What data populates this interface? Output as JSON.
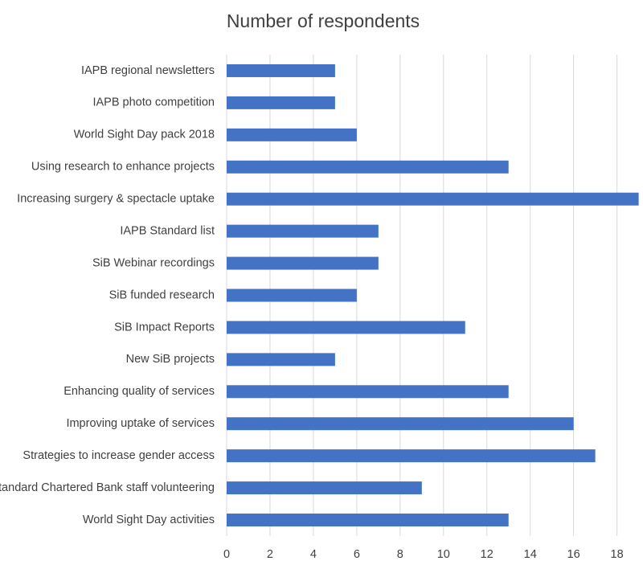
{
  "chart_data": {
    "type": "barh",
    "title": "Number of respondents",
    "categories": [
      "IAPB regional newsletters",
      "IAPB photo competition",
      "World Sight Day pack 2018",
      "Using research to enhance projects",
      "Increasing surgery & spectacle uptake",
      "IAPB Standard list",
      "SiB Webinar recordings",
      "SiB funded research",
      "SiB Impact Reports",
      "New SiB projects",
      "Enhancing quality of services",
      "Improving uptake of services",
      "Strategies to increase gender access",
      "Standard Chartered Bank staff volunteering",
      "World Sight Day activities"
    ],
    "values": [
      5,
      5,
      6,
      13,
      19,
      7,
      7,
      6,
      11,
      5,
      13,
      16,
      17,
      9,
      13
    ],
    "color": "#4472c4",
    "xlim": [
      0,
      19.2
    ],
    "xticks": [
      0,
      2,
      4,
      6,
      8,
      10,
      12,
      14,
      16,
      18
    ],
    "grid": true
  }
}
